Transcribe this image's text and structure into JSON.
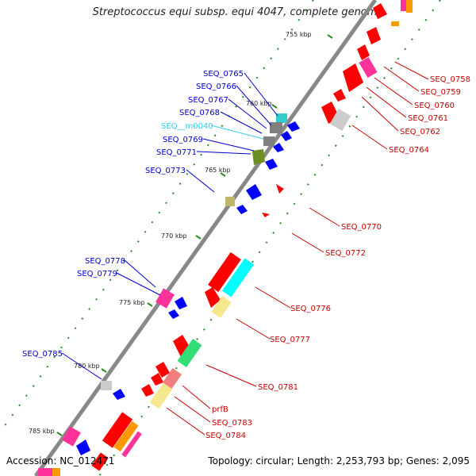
{
  "title": "Streptococcus equi subsp. equi 4047, complete genome",
  "footer": {
    "accession": "Accession: NC_012471",
    "summary": "Topology: circular; Length: 2,253,793 bp; Genes: 2,095"
  },
  "colors": {
    "forward_label": "#0000cc",
    "reverse_label": "#cc0000",
    "rna_label": "#33ccee",
    "backbone": "#888888",
    "tick": "#2a8a2a"
  },
  "kbp_ticks": [
    "755 kbp",
    "760 kbp",
    "765 kbp",
    "770 kbp",
    "775 kbp",
    "780 kbp",
    "785 kbp"
  ],
  "forward_labels": [
    "SEQ_0765",
    "SEQ_0766",
    "SEQ_0767",
    "SEQ_0768",
    "SEQ__m0040",
    "SEQ_0769",
    "SEQ_0771",
    "SEQ_0773",
    "SEQ_0778",
    "SEQ_0779",
    "SEQ_0785"
  ],
  "reverse_labels": [
    "SEQ_0758",
    "SEQ_0759",
    "SEQ_0760",
    "SEQ_0761",
    "SEQ_0762",
    "SEQ_0764",
    "SEQ_0770",
    "SEQ_0772",
    "SEQ_0776",
    "SEQ_0777",
    "SEQ_0781",
    "prfB",
    "SEQ_0783",
    "SEQ_0784"
  ]
}
